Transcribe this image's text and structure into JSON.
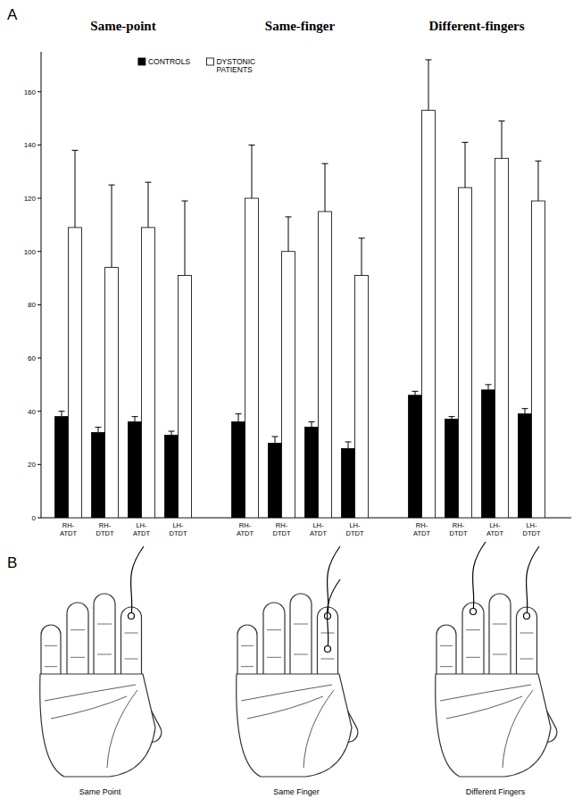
{
  "panel_labels": [
    "A",
    "B"
  ],
  "chart_data": {
    "type": "bar",
    "groups": [
      "Same-point",
      "Same-finger",
      "Different-fingers"
    ],
    "categories": [
      "RH-ATDT",
      "RH-DTDT",
      "LH-ATDT",
      "LH-DTDT",
      "RH-ATDT",
      "RH-DTDT",
      "LH-ATDT",
      "LH-DTDT",
      "RH-ATDT",
      "RH-DTDT",
      "LH-ATDT",
      "LH-DTDT"
    ],
    "series": [
      {
        "name": "CONTROLS",
        "color": "#000000",
        "values": [
          38,
          32,
          36,
          31,
          36,
          28,
          34,
          26,
          46,
          37,
          48,
          39
        ],
        "errors": [
          2,
          2,
          2,
          1.5,
          3,
          2.5,
          2,
          2.5,
          1.5,
          1,
          2,
          2
        ]
      },
      {
        "name": "DYSTONIC PATIENTS",
        "color": "#ffffff",
        "values": [
          109,
          94,
          109,
          91,
          120,
          100,
          115,
          91,
          153,
          124,
          135,
          119
        ],
        "errors": [
          29,
          31,
          17,
          28,
          20,
          13,
          18,
          14,
          19,
          17,
          14,
          15
        ]
      }
    ],
    "ylim": [
      0,
      175
    ],
    "yticks": [
      0,
      20,
      40,
      60,
      80,
      100,
      120,
      140,
      160
    ],
    "legend": "top",
    "grid": false
  },
  "diagrams": [
    "Same Point",
    "Same Finger",
    "Different Fingers"
  ]
}
